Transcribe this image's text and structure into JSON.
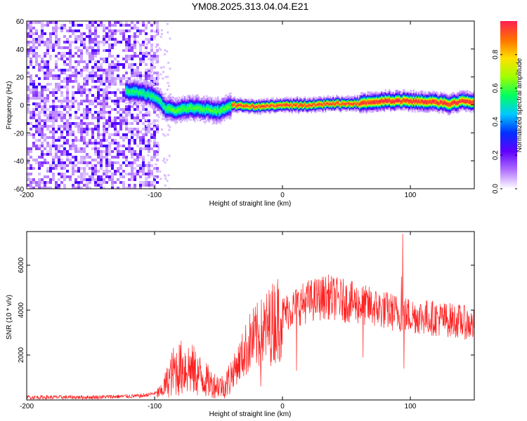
{
  "title": "YM08.2025.313.04.04.E21",
  "chart_data": [
    {
      "type": "heatmap",
      "name": "spectrogram",
      "xlabel": "Height of straight line (km)",
      "ylabel": "Frequency (Hz)",
      "xlim": [
        -200,
        150
      ],
      "ylim": [
        -60,
        60
      ],
      "x_ticks": [
        -200,
        -100,
        0,
        100
      ],
      "y_ticks": [
        -60,
        -40,
        -20,
        0,
        20,
        40,
        60
      ],
      "x_tick_labels": [
        "-200",
        "-100",
        "0",
        "100"
      ],
      "y_tick_labels": [
        "-60",
        "-40",
        "-20",
        "0",
        "20",
        "40",
        "60"
      ],
      "noise_region_x": [
        -200,
        -98
      ],
      "signal_start_x": -123,
      "ridge": [
        {
          "x": -123,
          "f": 10
        },
        {
          "x": -112,
          "f": 9
        },
        {
          "x": -103,
          "f": 7
        },
        {
          "x": -98,
          "f": 4
        },
        {
          "x": -92,
          "f": -2
        },
        {
          "x": -85,
          "f": -4
        },
        {
          "x": -75,
          "f": -2
        },
        {
          "x": -60,
          "f": -3
        },
        {
          "x": -50,
          "f": -4
        },
        {
          "x": -40,
          "f": 0
        },
        {
          "x": -20,
          "f": -1
        },
        {
          "x": 0,
          "f": 0
        },
        {
          "x": 20,
          "f": 0
        },
        {
          "x": 40,
          "f": 1
        },
        {
          "x": 60,
          "f": 1
        },
        {
          "x": 80,
          "f": 3
        },
        {
          "x": 100,
          "f": 3
        },
        {
          "x": 120,
          "f": 2
        },
        {
          "x": 130,
          "f": 1
        },
        {
          "x": 140,
          "f": 3
        },
        {
          "x": 150,
          "f": 2
        }
      ],
      "colorbar": {
        "label": "Normalized spectral amplitude",
        "range": [
          0.0,
          1.0
        ],
        "ticks": [
          0.0,
          0.2,
          0.4,
          0.6,
          0.8
        ],
        "tick_labels": [
          "0.0",
          "0.2",
          "0.4",
          "0.6",
          "0.8"
        ],
        "colors": [
          "#ffffff",
          "#b070ff",
          "#6000ff",
          "#0030ff",
          "#00c8ff",
          "#00ff60",
          "#a0ff00",
          "#ffe000",
          "#ff7000",
          "#ff2050"
        ]
      }
    },
    {
      "type": "line",
      "name": "snr",
      "xlabel": "Height of straight line (km)",
      "ylabel": "SNR (10 * v/v)",
      "xlim": [
        -200,
        150
      ],
      "ylim": [
        0,
        7500
      ],
      "x_ticks": [
        -200,
        -100,
        0,
        100
      ],
      "y_ticks": [
        2000,
        4000,
        6000
      ],
      "x_tick_labels": [
        "-200",
        "-100",
        "0",
        "100"
      ],
      "y_tick_labels": [
        "2000",
        "4000",
        "6000"
      ],
      "color": "#ff2020",
      "envelope": [
        {
          "x": -200,
          "y": 120
        },
        {
          "x": -150,
          "y": 120
        },
        {
          "x": -110,
          "y": 180
        },
        {
          "x": -95,
          "y": 350
        },
        {
          "x": -85,
          "y": 1300
        },
        {
          "x": -75,
          "y": 1500
        },
        {
          "x": -65,
          "y": 1100
        },
        {
          "x": -55,
          "y": 700
        },
        {
          "x": -45,
          "y": 600
        },
        {
          "x": -35,
          "y": 1600
        },
        {
          "x": -25,
          "y": 2600
        },
        {
          "x": -15,
          "y": 3000
        },
        {
          "x": -5,
          "y": 3600
        },
        {
          "x": 5,
          "y": 4000
        },
        {
          "x": 20,
          "y": 4400
        },
        {
          "x": 35,
          "y": 4600
        },
        {
          "x": 50,
          "y": 4400
        },
        {
          "x": 65,
          "y": 4200
        },
        {
          "x": 80,
          "y": 4000
        },
        {
          "x": 95,
          "y": 3800
        },
        {
          "x": 110,
          "y": 3700
        },
        {
          "x": 125,
          "y": 3600
        },
        {
          "x": 140,
          "y": 3500
        },
        {
          "x": 150,
          "y": 3300
        }
      ],
      "spikes": [
        {
          "x": 94,
          "y": 7400
        },
        {
          "x": 93,
          "y": 5500
        },
        {
          "x": 95,
          "y": 1400
        },
        {
          "x": 63,
          "y": 1900
        },
        {
          "x": 11,
          "y": 1300
        },
        {
          "x": -17,
          "y": 600
        }
      ]
    }
  ]
}
